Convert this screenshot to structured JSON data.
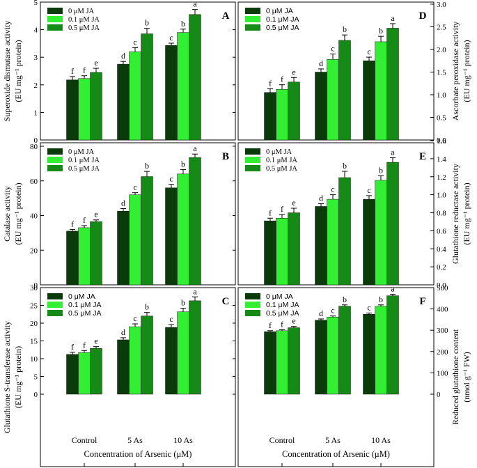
{
  "figure": {
    "categories": [
      "Control",
      "5 As",
      "10 As"
    ],
    "series_names": [
      "0 μM JA",
      "0.1 μM JA",
      "0.5 μM JA"
    ],
    "colors": [
      "#0b3b0b",
      "#33ef33",
      "#168a16"
    ],
    "x_axis_label": "Concentration of Arsenic (μM)",
    "panels": [
      {
        "id": "A",
        "type": "bar",
        "ylabel_lines": [
          "Superoxide dismutase activity",
          "(EU mg⁻¹ protein)"
        ],
        "ylim": [
          0,
          5
        ],
        "ticks": [
          0,
          1,
          2,
          3,
          4,
          5
        ],
        "series": [
          {
            "name": "0 μM JA",
            "values": [
              2.18,
              2.75,
              3.43
            ],
            "errors": [
              0.12,
              0.1,
              0.08
            ],
            "letters": [
              "f",
              "d",
              "c"
            ]
          },
          {
            "name": "0.1 μM JA",
            "values": [
              2.23,
              3.2,
              3.9
            ],
            "errors": [
              0.1,
              0.15,
              0.12
            ],
            "letters": [
              "f",
              "c",
              "b"
            ]
          },
          {
            "name": "0.5 μM JA",
            "values": [
              2.45,
              3.85,
              4.55
            ],
            "errors": [
              0.15,
              0.2,
              0.18
            ],
            "letters": [
              "e",
              "b",
              "a"
            ]
          }
        ]
      },
      {
        "id": "B",
        "type": "bar",
        "ylabel_lines": [
          "Catalase activity",
          "(EU mg⁻¹ protein)"
        ],
        "ylim": [
          0,
          80
        ],
        "ticks": [
          0,
          20,
          40,
          60,
          80
        ],
        "series": [
          {
            "name": "0 μM JA",
            "values": [
              31,
              42.5,
              56
            ],
            "errors": [
              1,
              1.5,
              2
            ],
            "letters": [
              "f",
              "d",
              "c"
            ]
          },
          {
            "name": "0.1 μM JA",
            "values": [
              33,
              52,
              64
            ],
            "errors": [
              1.2,
              1.2,
              2.5
            ],
            "letters": [
              "f",
              "c",
              "b"
            ]
          },
          {
            "name": "0.5 μM JA",
            "values": [
              36.5,
              62.5,
              73.5
            ],
            "errors": [
              1,
              3,
              2
            ],
            "letters": [
              "e",
              "b",
              "a"
            ]
          }
        ]
      },
      {
        "id": "C",
        "type": "bar",
        "ylabel_lines": [
          "Glutathione S-transferase activity",
          "(EU mg⁻¹ protein)"
        ],
        "ylim": [
          0,
          30
        ],
        "ticks": [
          0,
          5,
          10,
          15,
          20,
          25,
          30
        ],
        "series": [
          {
            "name": "0 μM JA",
            "values": [
              11.2,
              15.3,
              18.8
            ],
            "errors": [
              0.6,
              0.6,
              0.8
            ],
            "letters": [
              "f",
              "d",
              "c"
            ]
          },
          {
            "name": "0.1 μM JA",
            "values": [
              11.7,
              19,
              23.2
            ],
            "errors": [
              0.6,
              0.8,
              1
            ],
            "letters": [
              "f",
              "c",
              "b"
            ]
          },
          {
            "name": "0.5 μM JA",
            "values": [
              12.9,
              22,
              26.3
            ],
            "errors": [
              0.5,
              1,
              1.1
            ],
            "letters": [
              "e",
              "b",
              "a"
            ]
          }
        ]
      },
      {
        "id": "D",
        "type": "bar",
        "ylabel_lines": [
          "Ascorbate peroxidase activity",
          "(EU mg⁻¹ protein)"
        ],
        "ylim": [
          0,
          3.0
        ],
        "ticks": [
          0.0,
          0.5,
          1.0,
          1.5,
          2.0,
          2.5,
          3.0
        ],
        "series": [
          {
            "name": "0 μM JA",
            "values": [
              1.05,
              1.5,
              1.75
            ],
            "errors": [
              0.08,
              0.07,
              0.08
            ],
            "letters": [
              "f",
              "d",
              "c"
            ]
          },
          {
            "name": "0.1 μM JA",
            "values": [
              1.12,
              1.78,
              2.17
            ],
            "errors": [
              0.1,
              0.12,
              0.12
            ],
            "letters": [
              "f",
              "c",
              "b"
            ]
          },
          {
            "name": "0.5 μM JA",
            "values": [
              1.28,
              2.2,
              2.47
            ],
            "errors": [
              0.1,
              0.12,
              0.1
            ],
            "letters": [
              "e",
              "b",
              "a"
            ]
          }
        ]
      },
      {
        "id": "E",
        "type": "bar",
        "ylabel_lines": [
          "Glutathione reductase activity",
          "(EU mg⁻¹ protein)"
        ],
        "ylim": [
          0,
          1.6
        ],
        "ticks": [
          0.0,
          0.2,
          0.4,
          0.6,
          0.8,
          1.0,
          1.2,
          1.4,
          1.6
        ],
        "series": [
          {
            "name": "0 μM JA",
            "values": [
              0.71,
              0.87,
              0.95
            ],
            "errors": [
              0.03,
              0.03,
              0.04
            ],
            "letters": [
              "f",
              "d",
              "c"
            ]
          },
          {
            "name": "0.1 μM JA",
            "values": [
              0.74,
              0.95,
              1.16
            ],
            "errors": [
              0.04,
              0.05,
              0.05
            ],
            "letters": [
              "f",
              "c",
              "b"
            ]
          },
          {
            "name": "0.5 μM JA",
            "values": [
              0.8,
              1.19,
              1.36
            ],
            "errors": [
              0.05,
              0.07,
              0.05
            ],
            "letters": [
              "e",
              "b",
              "a"
            ]
          }
        ]
      },
      {
        "id": "F",
        "type": "bar",
        "ylabel_lines": [
          "Reduced glutathione content",
          "(nmol g⁻¹ FW)"
        ],
        "ylim": [
          0,
          500
        ],
        "ticks": [
          0,
          100,
          200,
          300,
          400,
          500
        ],
        "series": [
          {
            "name": "0 μM JA",
            "values": [
              293,
              347,
              375
            ],
            "errors": [
              5,
              6,
              6
            ],
            "letters": [
              "f",
              "d",
              "c"
            ]
          },
          {
            "name": "0.1 μM JA",
            "values": [
              298,
              362,
              413
            ],
            "errors": [
              5,
              5,
              6
            ],
            "letters": [
              "f",
              "c",
              "b"
            ]
          },
          {
            "name": "0.5 μM JA",
            "values": [
              312,
              413,
              462
            ],
            "errors": [
              6,
              6,
              7
            ],
            "letters": [
              "e",
              "b",
              "a"
            ]
          }
        ]
      }
    ]
  }
}
